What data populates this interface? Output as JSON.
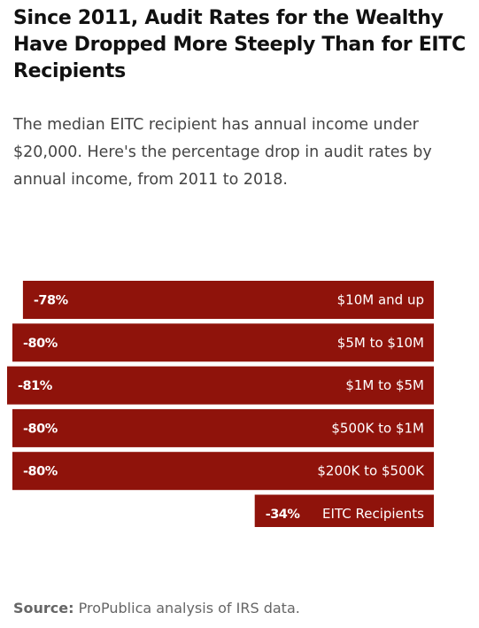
{
  "chart_data": {
    "type": "bar",
    "orientation": "horizontal",
    "title": "Since 2011, Audit Rates for the Wealthy Have Dropped More Steeply Than for EITC Recipients",
    "subtitle": "The median EITC recipient has annual income under $20,000. Here's the percentage drop in audit rates by annual income, from 2011 to 2018.",
    "categories": [
      "$10M and up",
      "$5M to $10M",
      "$1M to $5M",
      "$500K to $1M",
      "$200K to $500K",
      "EITC Recipients"
    ],
    "values": [
      -78,
      -80,
      -81,
      -80,
      -80,
      -34
    ],
    "data_labels": [
      "-78%",
      "-80%",
      "-81%",
      "-80%",
      "-80%",
      "-34%"
    ],
    "unit": "%",
    "bar_color": "#8f130b",
    "xlim": [
      -81,
      0
    ],
    "grid": false,
    "legend": "none"
  },
  "source": {
    "label": "Source:",
    "text": "ProPublica analysis of IRS data."
  }
}
